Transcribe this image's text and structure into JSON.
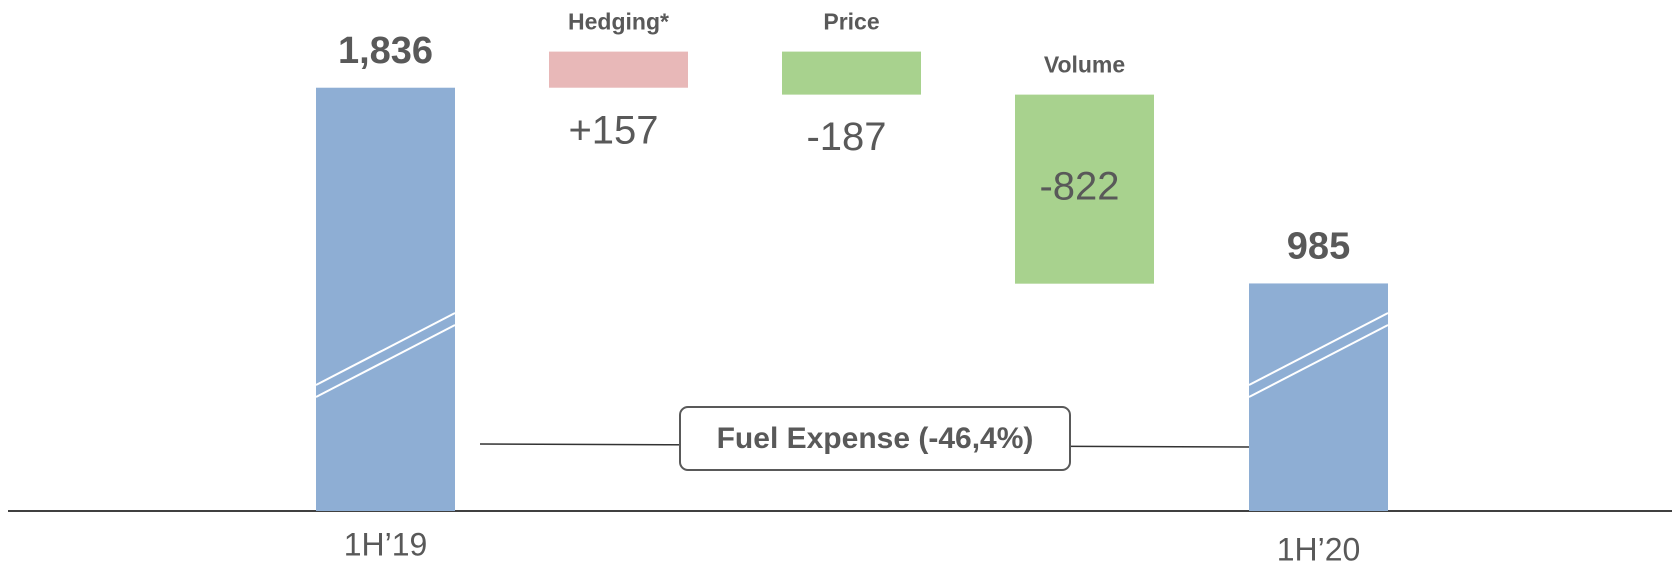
{
  "chart_data": {
    "type": "waterfall",
    "categories": [
      "1H’19",
      "Hedging*",
      "Price",
      "Volume",
      "1H’20"
    ],
    "values": [
      1836,
      157,
      -187,
      -822,
      985
    ],
    "value_labels": [
      "1,836",
      "+157",
      "-187",
      "-822",
      "985"
    ],
    "colors": [
      "#8eaed4",
      "#e8b8b8",
      "#a8d28e",
      "#a8d28e",
      "#8eaed4"
    ],
    "ylim": [
      800,
      2000
    ],
    "axis_break": true,
    "annotation": "Fuel Expense (-46,4%)"
  }
}
